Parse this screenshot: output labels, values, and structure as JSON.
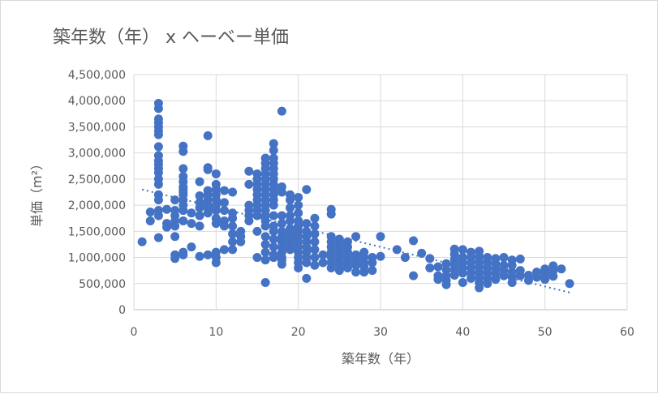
{
  "chart_data": {
    "type": "scatter",
    "title": "築年数（年） x ヘーベー単価",
    "xlabel": "築年数（年）",
    "ylabel": "単価（m²）",
    "xlim": [
      0,
      60
    ],
    "ylim": [
      0,
      4500000
    ],
    "x_ticks": [
      "0",
      "10",
      "20",
      "30",
      "40",
      "50",
      "60"
    ],
    "y_ticks": [
      "0",
      "500,000",
      "1,000,000",
      "1,500,000",
      "2,000,000",
      "2,500,000",
      "3,000,000",
      "3,500,000",
      "4,000,000",
      "4,500,000"
    ],
    "grid": true,
    "legend": "none",
    "point_color": "#4472c4",
    "trendline": {
      "type": "linear",
      "x": [
        1,
        53
      ],
      "y": [
        2300000,
        330000
      ]
    },
    "points": [
      [
        1,
        1300000
      ],
      [
        2,
        1700000
      ],
      [
        2,
        1870000
      ],
      [
        3,
        3950000
      ],
      [
        3,
        3850000
      ],
      [
        3,
        3650000
      ],
      [
        3,
        3580000
      ],
      [
        3,
        3500000
      ],
      [
        3,
        3420000
      ],
      [
        3,
        3350000
      ],
      [
        3,
        3120000
      ],
      [
        3,
        2950000
      ],
      [
        3,
        2850000
      ],
      [
        3,
        2780000
      ],
      [
        3,
        2700000
      ],
      [
        3,
        2620000
      ],
      [
        3,
        2500000
      ],
      [
        3,
        2400000
      ],
      [
        3,
        2200000
      ],
      [
        3,
        2100000
      ],
      [
        3,
        1900000
      ],
      [
        3,
        1800000
      ],
      [
        3,
        1380000
      ],
      [
        4,
        1920000
      ],
      [
        4,
        1650000
      ],
      [
        4,
        1580000
      ],
      [
        5,
        2100000
      ],
      [
        5,
        1900000
      ],
      [
        5,
        1800000
      ],
      [
        5,
        1700000
      ],
      [
        5,
        1600000
      ],
      [
        5,
        1400000
      ],
      [
        5,
        1050000
      ],
      [
        5,
        980000
      ],
      [
        6,
        3130000
      ],
      [
        6,
        3030000
      ],
      [
        6,
        2700000
      ],
      [
        6,
        2550000
      ],
      [
        6,
        2450000
      ],
      [
        6,
        2350000
      ],
      [
        6,
        2300000
      ],
      [
        6,
        2250000
      ],
      [
        6,
        2200000
      ],
      [
        6,
        2100000
      ],
      [
        6,
        2000000
      ],
      [
        6,
        1900000
      ],
      [
        6,
        1700000
      ],
      [
        6,
        1100000
      ],
      [
        6,
        1050000
      ],
      [
        7,
        1850000
      ],
      [
        7,
        1650000
      ],
      [
        7,
        1200000
      ],
      [
        8,
        2450000
      ],
      [
        8,
        2180000
      ],
      [
        8,
        2050000
      ],
      [
        8,
        1950000
      ],
      [
        8,
        1800000
      ],
      [
        8,
        1600000
      ],
      [
        8,
        1020000
      ],
      [
        9,
        3330000
      ],
      [
        9,
        2720000
      ],
      [
        9,
        2680000
      ],
      [
        9,
        2280000
      ],
      [
        9,
        2200000
      ],
      [
        9,
        2100000
      ],
      [
        9,
        2000000
      ],
      [
        9,
        1950000
      ],
      [
        9,
        1850000
      ],
      [
        9,
        1050000
      ],
      [
        10,
        2600000
      ],
      [
        10,
        2400000
      ],
      [
        10,
        2300000
      ],
      [
        10,
        2200000
      ],
      [
        10,
        2100000
      ],
      [
        10,
        2000000
      ],
      [
        10,
        1900000
      ],
      [
        10,
        1750000
      ],
      [
        10,
        1650000
      ],
      [
        10,
        1100000
      ],
      [
        10,
        1000000
      ],
      [
        10,
        900000
      ],
      [
        11,
        2280000
      ],
      [
        11,
        2050000
      ],
      [
        11,
        1900000
      ],
      [
        11,
        1700000
      ],
      [
        11,
        1600000
      ],
      [
        11,
        1150000
      ],
      [
        12,
        2250000
      ],
      [
        12,
        1850000
      ],
      [
        12,
        1750000
      ],
      [
        12,
        1600000
      ],
      [
        12,
        1450000
      ],
      [
        12,
        1300000
      ],
      [
        12,
        1150000
      ],
      [
        13,
        1500000
      ],
      [
        13,
        1400000
      ],
      [
        13,
        1300000
      ],
      [
        14,
        2650000
      ],
      [
        14,
        2400000
      ],
      [
        14,
        2000000
      ],
      [
        14,
        1900000
      ],
      [
        14,
        1800000
      ],
      [
        14,
        1700000
      ],
      [
        15,
        2600000
      ],
      [
        15,
        2500000
      ],
      [
        15,
        2400000
      ],
      [
        15,
        2300000
      ],
      [
        15,
        2200000
      ],
      [
        15,
        2100000
      ],
      [
        15,
        2000000
      ],
      [
        15,
        1900000
      ],
      [
        15,
        1800000
      ],
      [
        15,
        1500000
      ],
      [
        15,
        1000000
      ],
      [
        16,
        2900000
      ],
      [
        16,
        2800000
      ],
      [
        16,
        2700000
      ],
      [
        16,
        2600000
      ],
      [
        16,
        2500000
      ],
      [
        16,
        2400000
      ],
      [
        16,
        2300000
      ],
      [
        16,
        2200000
      ],
      [
        16,
        2100000
      ],
      [
        16,
        2000000
      ],
      [
        16,
        1900000
      ],
      [
        16,
        1800000
      ],
      [
        16,
        1700000
      ],
      [
        16,
        1600000
      ],
      [
        16,
        1400000
      ],
      [
        16,
        1250000
      ],
      [
        16,
        1100000
      ],
      [
        16,
        950000
      ],
      [
        16,
        520000
      ],
      [
        17,
        3180000
      ],
      [
        17,
        3050000
      ],
      [
        17,
        2900000
      ],
      [
        17,
        2800000
      ],
      [
        17,
        2700000
      ],
      [
        17,
        2600000
      ],
      [
        17,
        2500000
      ],
      [
        17,
        2400000
      ],
      [
        17,
        2300000
      ],
      [
        17,
        2200000
      ],
      [
        17,
        2100000
      ],
      [
        17,
        2000000
      ],
      [
        17,
        1800000
      ],
      [
        17,
        1600000
      ],
      [
        17,
        1500000
      ],
      [
        17,
        1350000
      ],
      [
        17,
        1200000
      ],
      [
        17,
        1050000
      ],
      [
        17,
        1000000
      ],
      [
        18,
        3800000
      ],
      [
        18,
        2350000
      ],
      [
        18,
        2250000
      ],
      [
        18,
        1800000
      ],
      [
        18,
        1650000
      ],
      [
        18,
        1500000
      ],
      [
        18,
        1400000
      ],
      [
        18,
        1300000
      ],
      [
        18,
        1200000
      ],
      [
        18,
        1100000
      ],
      [
        18,
        1000000
      ],
      [
        18,
        950000
      ],
      [
        18,
        870000
      ],
      [
        19,
        2200000
      ],
      [
        19,
        2100000
      ],
      [
        19,
        1950000
      ],
      [
        19,
        1800000
      ],
      [
        19,
        1700000
      ],
      [
        19,
        1550000
      ],
      [
        19,
        1450000
      ],
      [
        19,
        1350000
      ],
      [
        19,
        1250000
      ],
      [
        19,
        1150000
      ],
      [
        20,
        2150000
      ],
      [
        20,
        2000000
      ],
      [
        20,
        1850000
      ],
      [
        20,
        1700000
      ],
      [
        20,
        1600000
      ],
      [
        20,
        1500000
      ],
      [
        20,
        1400000
      ],
      [
        20,
        1300000
      ],
      [
        20,
        1200000
      ],
      [
        20,
        1100000
      ],
      [
        20,
        1000000
      ],
      [
        20,
        900000
      ],
      [
        20,
        800000
      ],
      [
        21,
        2300000
      ],
      [
        21,
        1650000
      ],
      [
        21,
        1500000
      ],
      [
        21,
        1400000
      ],
      [
        21,
        1300000
      ],
      [
        21,
        1200000
      ],
      [
        21,
        1100000
      ],
      [
        21,
        1000000
      ],
      [
        21,
        900000
      ],
      [
        21,
        600000
      ],
      [
        22,
        1750000
      ],
      [
        22,
        1600000
      ],
      [
        22,
        1450000
      ],
      [
        22,
        1300000
      ],
      [
        22,
        1150000
      ],
      [
        22,
        1000000
      ],
      [
        22,
        850000
      ],
      [
        23,
        1050000
      ],
      [
        23,
        900000
      ],
      [
        24,
        1920000
      ],
      [
        24,
        1830000
      ],
      [
        24,
        1400000
      ],
      [
        24,
        1300000
      ],
      [
        24,
        1200000
      ],
      [
        24,
        1100000
      ],
      [
        24,
        1000000
      ],
      [
        24,
        900000
      ],
      [
        24,
        800000
      ],
      [
        25,
        1350000
      ],
      [
        25,
        1250000
      ],
      [
        25,
        1150000
      ],
      [
        25,
        1050000
      ],
      [
        25,
        950000
      ],
      [
        25,
        850000
      ],
      [
        25,
        750000
      ],
      [
        26,
        1300000
      ],
      [
        26,
        1200000
      ],
      [
        26,
        1100000
      ],
      [
        26,
        1000000
      ],
      [
        26,
        900000
      ],
      [
        26,
        800000
      ],
      [
        27,
        1400000
      ],
      [
        27,
        1050000
      ],
      [
        27,
        950000
      ],
      [
        27,
        850000
      ],
      [
        27,
        720000
      ],
      [
        28,
        1100000
      ],
      [
        28,
        1000000
      ],
      [
        28,
        900000
      ],
      [
        28,
        820000
      ],
      [
        28,
        720000
      ],
      [
        29,
        1000000
      ],
      [
        29,
        900000
      ],
      [
        29,
        750000
      ],
      [
        30,
        1400000
      ],
      [
        30,
        1020000
      ],
      [
        32,
        1150000
      ],
      [
        33,
        1000000
      ],
      [
        34,
        1320000
      ],
      [
        34,
        650000
      ],
      [
        35,
        1080000
      ],
      [
        36,
        980000
      ],
      [
        36,
        800000
      ],
      [
        37,
        820000
      ],
      [
        37,
        650000
      ],
      [
        37,
        580000
      ],
      [
        38,
        880000
      ],
      [
        38,
        760000
      ],
      [
        38,
        650000
      ],
      [
        38,
        560000
      ],
      [
        38,
        480000
      ],
      [
        39,
        1160000
      ],
      [
        39,
        1060000
      ],
      [
        39,
        960000
      ],
      [
        39,
        860000
      ],
      [
        39,
        760000
      ],
      [
        39,
        660000
      ],
      [
        40,
        1150000
      ],
      [
        40,
        1000000
      ],
      [
        40,
        900000
      ],
      [
        40,
        800000
      ],
      [
        40,
        700000
      ],
      [
        40,
        520000
      ],
      [
        41,
        1100000
      ],
      [
        41,
        1000000
      ],
      [
        41,
        900000
      ],
      [
        41,
        800000
      ],
      [
        41,
        700000
      ],
      [
        41,
        600000
      ],
      [
        42,
        1120000
      ],
      [
        42,
        1020000
      ],
      [
        42,
        920000
      ],
      [
        42,
        820000
      ],
      [
        42,
        720000
      ],
      [
        42,
        620000
      ],
      [
        42,
        520000
      ],
      [
        42,
        420000
      ],
      [
        43,
        1000000
      ],
      [
        43,
        900000
      ],
      [
        43,
        800000
      ],
      [
        43,
        700000
      ],
      [
        43,
        600000
      ],
      [
        43,
        500000
      ],
      [
        44,
        980000
      ],
      [
        44,
        880000
      ],
      [
        44,
        780000
      ],
      [
        44,
        680000
      ],
      [
        44,
        580000
      ],
      [
        45,
        1000000
      ],
      [
        45,
        850000
      ],
      [
        45,
        750000
      ],
      [
        45,
        650000
      ],
      [
        46,
        950000
      ],
      [
        46,
        850000
      ],
      [
        46,
        720000
      ],
      [
        46,
        620000
      ],
      [
        46,
        520000
      ],
      [
        47,
        970000
      ],
      [
        47,
        750000
      ],
      [
        47,
        650000
      ],
      [
        48,
        660000
      ],
      [
        48,
        560000
      ],
      [
        49,
        720000
      ],
      [
        49,
        620000
      ],
      [
        50,
        780000
      ],
      [
        50,
        680000
      ],
      [
        50,
        580000
      ],
      [
        51,
        840000
      ],
      [
        51,
        740000
      ],
      [
        51,
        640000
      ],
      [
        52,
        780000
      ],
      [
        53,
        500000
      ]
    ]
  }
}
